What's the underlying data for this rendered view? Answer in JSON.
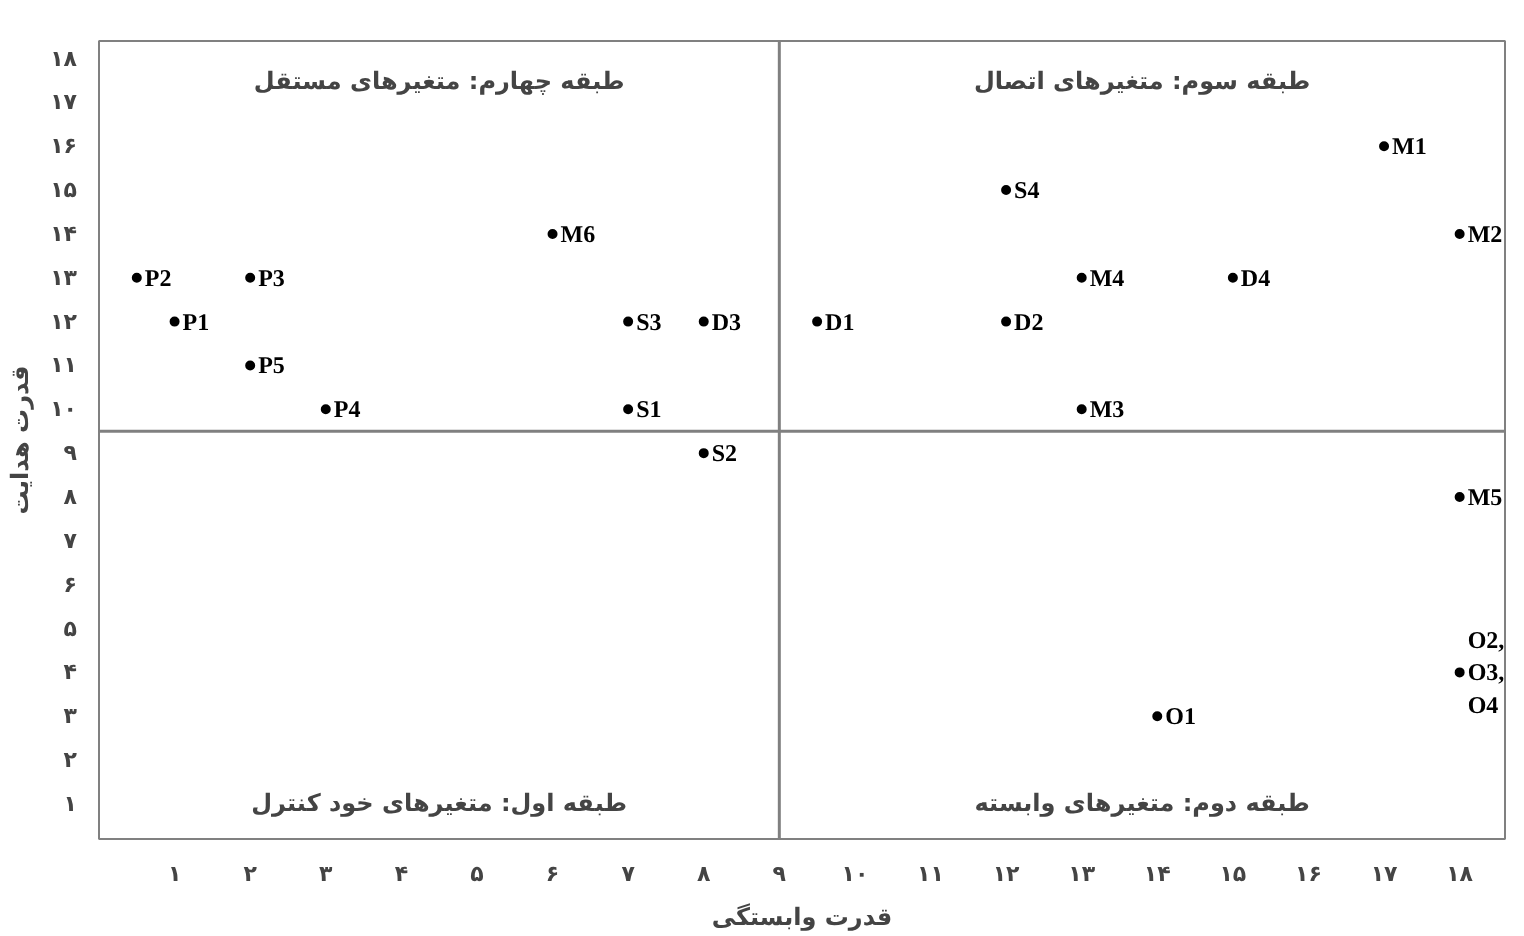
{
  "chart_data": {
    "type": "scatter",
    "xlabel": "قدرت وابستگی",
    "ylabel": "قدرت هدایت",
    "x": [
      0.5,
      1,
      2,
      2,
      3,
      6,
      7,
      7,
      8,
      8,
      9.5,
      12,
      12,
      13,
      13,
      15,
      17,
      18,
      18,
      18,
      14
    ],
    "values": [
      13,
      12,
      13,
      11,
      10,
      14,
      12,
      10,
      12,
      9,
      12,
      12,
      15,
      13,
      10,
      13,
      16,
      14,
      8,
      4,
      3
    ],
    "value_labels": [
      "P2",
      "P1",
      "P3",
      "P5",
      "P4",
      "M6",
      "S3",
      "S1",
      "D3",
      "S2",
      "D1",
      "D2",
      "S4",
      "M4",
      "M3",
      "D4",
      "M1",
      "M2",
      "M5",
      "O2,\nO3,\nO4",
      "O1"
    ],
    "marker": "circle",
    "color": "#000000",
    "xlim": [
      0,
      18.6
    ],
    "ylim": [
      0.2,
      18.4
    ],
    "xticks": [
      {
        "value": 1,
        "label": "۱"
      },
      {
        "value": 2,
        "label": "۲"
      },
      {
        "value": 3,
        "label": "۳"
      },
      {
        "value": 4,
        "label": "۴"
      },
      {
        "value": 5,
        "label": "۵"
      },
      {
        "value": 6,
        "label": "۶"
      },
      {
        "value": 7,
        "label": "۷"
      },
      {
        "value": 8,
        "label": "۸"
      },
      {
        "value": 9,
        "label": "۹"
      },
      {
        "value": 10,
        "label": "۱۰"
      },
      {
        "value": 11,
        "label": "۱۱"
      },
      {
        "value": 12,
        "label": "۱۲"
      },
      {
        "value": 13,
        "label": "۱۳"
      },
      {
        "value": 14,
        "label": "۱۴"
      },
      {
        "value": 15,
        "label": "۱۵"
      },
      {
        "value": 16,
        "label": "۱۶"
      },
      {
        "value": 17,
        "label": "۱۷"
      },
      {
        "value": 18,
        "label": "۱۸"
      }
    ],
    "yticks": [
      {
        "value": 1,
        "label": "۱"
      },
      {
        "value": 2,
        "label": "۲"
      },
      {
        "value": 3,
        "label": "۳"
      },
      {
        "value": 4,
        "label": "۴"
      },
      {
        "value": 5,
        "label": "۵"
      },
      {
        "value": 6,
        "label": "۶"
      },
      {
        "value": 7,
        "label": "۷"
      },
      {
        "value": 8,
        "label": "۸"
      },
      {
        "value": 9,
        "label": "۹"
      },
      {
        "value": 10,
        "label": "۱۰"
      },
      {
        "value": 11,
        "label": "۱۱"
      },
      {
        "value": 12,
        "label": "۱۲"
      },
      {
        "value": 13,
        "label": "۱۳"
      },
      {
        "value": 14,
        "label": "۱۴"
      },
      {
        "value": 15,
        "label": "۱۵"
      },
      {
        "value": 16,
        "label": "۱۶"
      },
      {
        "value": 17,
        "label": "۱۷"
      },
      {
        "value": 18,
        "label": "۱۸"
      }
    ],
    "ref_lines": [
      {
        "axis": "x",
        "value": 9,
        "color": "#808080"
      },
      {
        "axis": "y",
        "value": 9.5,
        "color": "#808080"
      }
    ],
    "annotations": [
      "طبقه چهارم: متغیرهای مستقل",
      "طبقه سوم: متغیرهای اتصال",
      "طبقه اول: متغیرهای خود کنترل",
      "طبقه دوم: متغیرهای وابسته"
    ],
    "grid": false
  }
}
